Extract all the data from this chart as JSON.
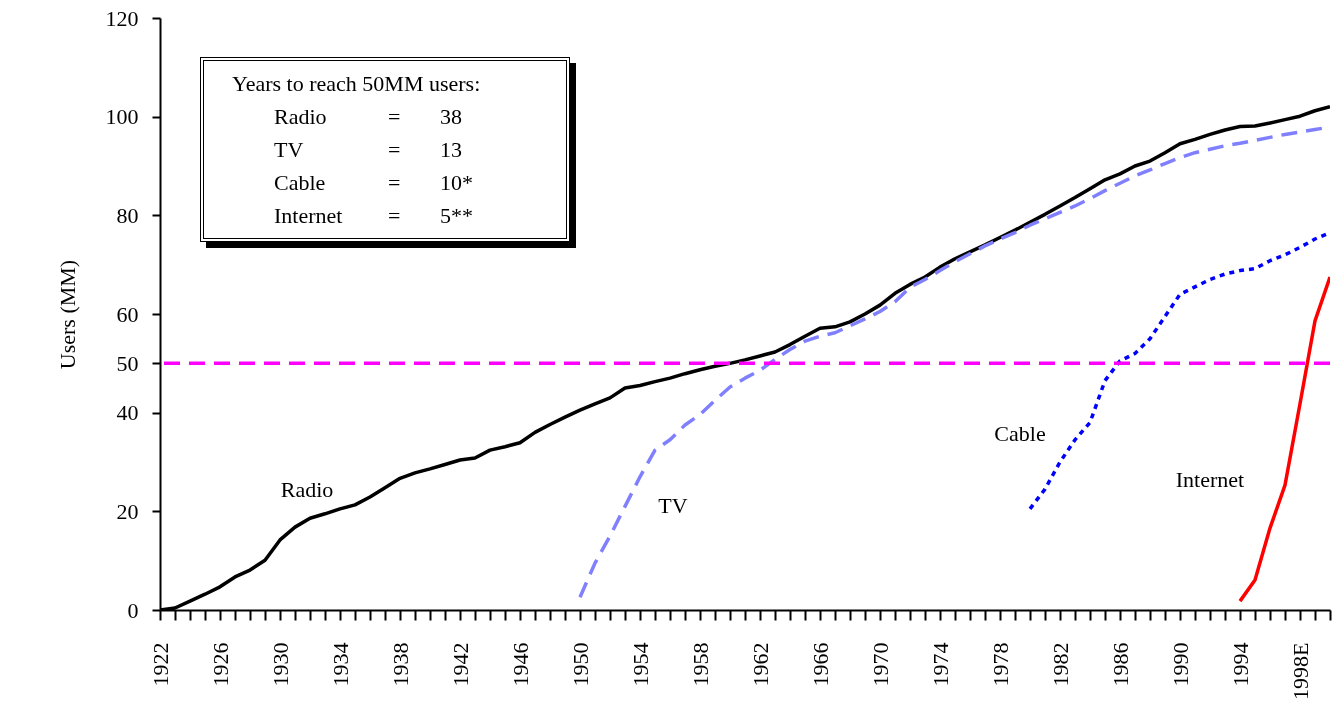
{
  "chart_data": {
    "type": "line",
    "ylabel": "Users (MM)",
    "xlim": [
      1922,
      2000
    ],
    "ylim": [
      0,
      120
    ],
    "yticks": [
      0,
      20,
      40,
      50,
      60,
      80,
      100,
      120
    ],
    "xticks": [
      1922,
      {
        "value": 1923,
        "label": null
      },
      {
        "value": 1924,
        "label": null
      },
      {
        "value": 1925,
        "label": null
      },
      1926,
      {
        "value": 1927,
        "label": null
      },
      {
        "value": 1928,
        "label": null
      },
      {
        "value": 1929,
        "label": null
      },
      1930,
      {
        "value": 1931,
        "label": null
      },
      {
        "value": 1932,
        "label": null
      },
      {
        "value": 1933,
        "label": null
      },
      1934,
      {
        "value": 1935,
        "label": null
      },
      {
        "value": 1936,
        "label": null
      },
      {
        "value": 1937,
        "label": null
      },
      1938,
      {
        "value": 1939,
        "label": null
      },
      {
        "value": 1940,
        "label": null
      },
      {
        "value": 1941,
        "label": null
      },
      1942,
      {
        "value": 1943,
        "label": null
      },
      {
        "value": 1944,
        "label": null
      },
      {
        "value": 1945,
        "label": null
      },
      1946,
      {
        "value": 1947,
        "label": null
      },
      {
        "value": 1948,
        "label": null
      },
      {
        "value": 1949,
        "label": null
      },
      1950,
      {
        "value": 1951,
        "label": null
      },
      {
        "value": 1952,
        "label": null
      },
      {
        "value": 1953,
        "label": null
      },
      1954,
      {
        "value": 1955,
        "label": null
      },
      {
        "value": 1956,
        "label": null
      },
      {
        "value": 1957,
        "label": null
      },
      1958,
      {
        "value": 1959,
        "label": null
      },
      {
        "value": 1960,
        "label": null
      },
      {
        "value": 1961,
        "label": null
      },
      1962,
      {
        "value": 1963,
        "label": null
      },
      {
        "value": 1964,
        "label": null
      },
      {
        "value": 1965,
        "label": null
      },
      1966,
      {
        "value": 1967,
        "label": null
      },
      {
        "value": 1968,
        "label": null
      },
      {
        "value": 1969,
        "label": null
      },
      1970,
      {
        "value": 1971,
        "label": null
      },
      {
        "value": 1972,
        "label": null
      },
      {
        "value": 1973,
        "label": null
      },
      1974,
      {
        "value": 1975,
        "label": null
      },
      {
        "value": 1976,
        "label": null
      },
      {
        "value": 1977,
        "label": null
      },
      1978,
      {
        "value": 1979,
        "label": null
      },
      {
        "value": 1980,
        "label": null
      },
      {
        "value": 1981,
        "label": null
      },
      1982,
      {
        "value": 1983,
        "label": null
      },
      {
        "value": 1984,
        "label": null
      },
      {
        "value": 1985,
        "label": null
      },
      1986,
      {
        "value": 1987,
        "label": null
      },
      {
        "value": 1988,
        "label": null
      },
      {
        "value": 1989,
        "label": null
      },
      1990,
      {
        "value": 1991,
        "label": null
      },
      {
        "value": 1992,
        "label": null
      },
      {
        "value": 1993,
        "label": null
      },
      1994,
      {
        "value": 1995,
        "label": null
      },
      {
        "value": 1996,
        "label": null
      },
      {
        "value": 1997,
        "label": null
      },
      {
        "value": 1998,
        "label": "1998E"
      },
      {
        "value": 1999,
        "label": null
      },
      {
        "value": 2000,
        "label": null
      }
    ],
    "series": [
      {
        "name": "Radio",
        "color": "#000000",
        "line_style": "solid",
        "x": [
          1922,
          1923,
          1924,
          1925,
          1926,
          1927,
          1928,
          1929,
          1930,
          1931,
          1932,
          1933,
          1934,
          1935,
          1936,
          1937,
          1938,
          1939,
          1940,
          1941,
          1942,
          1943,
          1944,
          1945,
          1946,
          1947,
          1948,
          1949,
          1950,
          1951,
          1952,
          1953,
          1954,
          1955,
          1956,
          1957,
          1958,
          1959,
          1960,
          1961,
          1962,
          1963,
          1964,
          1965,
          1966,
          1967,
          1968,
          1969,
          1970,
          1971,
          1972,
          1973,
          1974,
          1975,
          1976,
          1977,
          1978,
          1979,
          1980,
          1981,
          1982,
          1983,
          1984,
          1985,
          1986,
          1987,
          1988,
          1989,
          1990,
          1991,
          1992,
          1993,
          1994,
          1995,
          1996,
          1997,
          1998,
          1999,
          2000
        ],
        "values": [
          0,
          0.4,
          1.8,
          3.2,
          4.7,
          6.7,
          8.1,
          10.1,
          14.2,
          16.8,
          18.6,
          19.5,
          20.5,
          21.3,
          22.9,
          24.8,
          26.7,
          27.8,
          28.6,
          29.5,
          30.4,
          30.8,
          32.4,
          33.1,
          33.9,
          36,
          37.6,
          39.1,
          40.5,
          41.8,
          43,
          45,
          45.5,
          46.3,
          47,
          47.9,
          48.7,
          49.4,
          50,
          50.7,
          51.5,
          52.3,
          53.8,
          55.5,
          57.1,
          57.4,
          58.4,
          60,
          61.8,
          64.2,
          66,
          67.5,
          69.5,
          71.2,
          72.6,
          74,
          75.5,
          77,
          78.6,
          80.2,
          81.9,
          83.6,
          85.4,
          87.2,
          88.4,
          90,
          91,
          92.7,
          94.5,
          95.4,
          96.4,
          97.3,
          98,
          98.1,
          98.7,
          99.4,
          100.1,
          101.2,
          102
        ]
      },
      {
        "name": "TV",
        "color": "#8080ff",
        "line_style": "dashed",
        "x": [
          1950,
          1951,
          1952,
          1953,
          1954,
          1955,
          1956,
          1957,
          1958,
          1959,
          1960,
          1961,
          1962,
          1963,
          1964,
          1965,
          1966,
          1967,
          1968,
          1969,
          1970,
          1971,
          1972,
          1973,
          1974,
          1975,
          1976,
          1977,
          1978,
          1979,
          1980,
          1981,
          1982,
          1983,
          1984,
          1985,
          1986,
          1987,
          1988,
          1989,
          1990,
          1991,
          1992,
          1993,
          1994,
          1995,
          1996,
          1997,
          1998,
          1999,
          2000
        ],
        "values": [
          2.6,
          9.5,
          15,
          21,
          27,
          32.4,
          34.5,
          37.5,
          39.6,
          42.5,
          45.2,
          47,
          48.6,
          50.8,
          52.8,
          54.5,
          55.5,
          56.2,
          57.6,
          59,
          60.5,
          62.5,
          65.4,
          67,
          68.8,
          70.6,
          72.2,
          73.8,
          75.2,
          76.5,
          78,
          79.3,
          80.6,
          81.9,
          83.4,
          85,
          86.5,
          88,
          89.2,
          90.5,
          91.7,
          92.7,
          93.4,
          94.1,
          94.6,
          95.2,
          95.8,
          96.4,
          96.9,
          97.4,
          97.9
        ]
      },
      {
        "name": "Cable",
        "color": "#0000ff",
        "line_style": "dotted",
        "x": [
          1980,
          1981,
          1982,
          1983,
          1984,
          1985,
          1986,
          1987,
          1988,
          1989,
          1990,
          1991,
          1992,
          1993,
          1994,
          1995,
          1996,
          1997,
          1998,
          1999,
          2000
        ],
        "values": [
          20.5,
          24.5,
          30,
          34.5,
          38,
          46.5,
          50.5,
          52,
          55,
          59.5,
          64,
          65.5,
          67,
          68.1,
          68.8,
          69.2,
          70.8,
          72,
          73.5,
          75.2,
          76.5
        ]
      },
      {
        "name": "Internet",
        "color": "#ff0000",
        "line_style": "solid",
        "x": [
          1994,
          1995,
          1996,
          1997,
          1998,
          1999,
          2000
        ],
        "values": [
          1.8,
          6.1,
          16.6,
          25.3,
          41.8,
          58.6,
          67.5
        ]
      }
    ],
    "ref_lines": [
      {
        "axis": "y",
        "value": 50,
        "color": "#ff00ff",
        "line_style": "dashed"
      }
    ],
    "annotations": [
      "Years to reach 50MM users:",
      "Radio = 38",
      "TV = 13",
      "Cable = 10*",
      "Internet = 5**"
    ]
  }
}
